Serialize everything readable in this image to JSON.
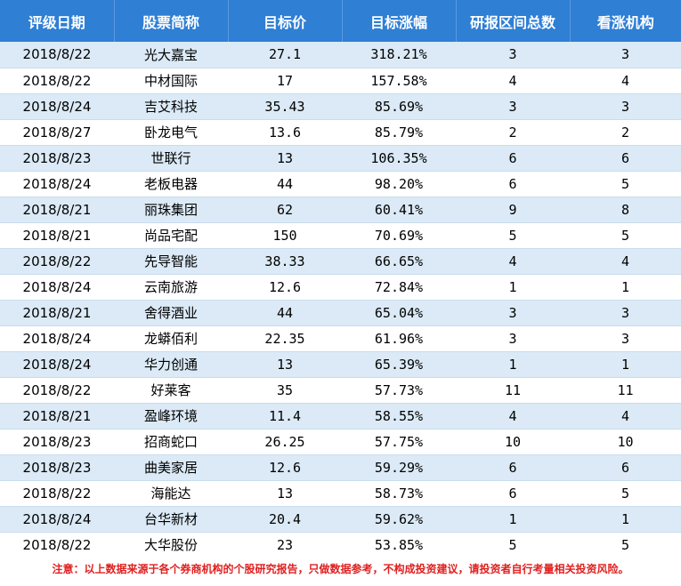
{
  "table": {
    "headers": [
      "评级日期",
      "股票简称",
      "目标价",
      "目标涨幅",
      "研报区间总数",
      "看涨机构"
    ],
    "rows": [
      [
        "2018/8/22",
        "光大嘉宝",
        "27.1",
        "318.21%",
        "3",
        "3"
      ],
      [
        "2018/8/22",
        "中材国际",
        "17",
        "157.58%",
        "4",
        "4"
      ],
      [
        "2018/8/24",
        "吉艾科技",
        "35.43",
        "85.69%",
        "3",
        "3"
      ],
      [
        "2018/8/27",
        "卧龙电气",
        "13.6",
        "85.79%",
        "2",
        "2"
      ],
      [
        "2018/8/23",
        "世联行",
        "13",
        "106.35%",
        "6",
        "6"
      ],
      [
        "2018/8/24",
        "老板电器",
        "44",
        "98.20%",
        "6",
        "5"
      ],
      [
        "2018/8/21",
        "丽珠集团",
        "62",
        "60.41%",
        "9",
        "8"
      ],
      [
        "2018/8/21",
        "尚品宅配",
        "150",
        "70.69%",
        "5",
        "5"
      ],
      [
        "2018/8/22",
        "先导智能",
        "38.33",
        "66.65%",
        "4",
        "4"
      ],
      [
        "2018/8/24",
        "云南旅游",
        "12.6",
        "72.84%",
        "1",
        "1"
      ],
      [
        "2018/8/21",
        "舍得酒业",
        "44",
        "65.04%",
        "3",
        "3"
      ],
      [
        "2018/8/24",
        "龙蟒佰利",
        "22.35",
        "61.96%",
        "3",
        "3"
      ],
      [
        "2018/8/24",
        "华力创通",
        "13",
        "65.39%",
        "1",
        "1"
      ],
      [
        "2018/8/22",
        "好莱客",
        "35",
        "57.73%",
        "11",
        "11"
      ],
      [
        "2018/8/21",
        "盈峰环境",
        "11.4",
        "58.55%",
        "4",
        "4"
      ],
      [
        "2018/8/23",
        "招商蛇口",
        "26.25",
        "57.75%",
        "10",
        "10"
      ],
      [
        "2018/8/23",
        "曲美家居",
        "12.6",
        "59.29%",
        "6",
        "6"
      ],
      [
        "2018/8/22",
        "海能达",
        "13",
        "58.73%",
        "6",
        "5"
      ],
      [
        "2018/8/24",
        "台华新材",
        "20.4",
        "59.62%",
        "1",
        "1"
      ],
      [
        "2018/8/22",
        "大华股份",
        "23",
        "53.85%",
        "5",
        "5"
      ]
    ]
  },
  "footnote": "注意：以上数据来源于各个券商机构的个股研究报告，只做数据参考，不构成投资建议，请投资者自行考量相关投资风险。",
  "colors": {
    "header_bg": "#2f7fd5",
    "header_text": "#ffffff",
    "row_alt_bg": "#dbeaf6",
    "footnote_text": "#e02020"
  }
}
